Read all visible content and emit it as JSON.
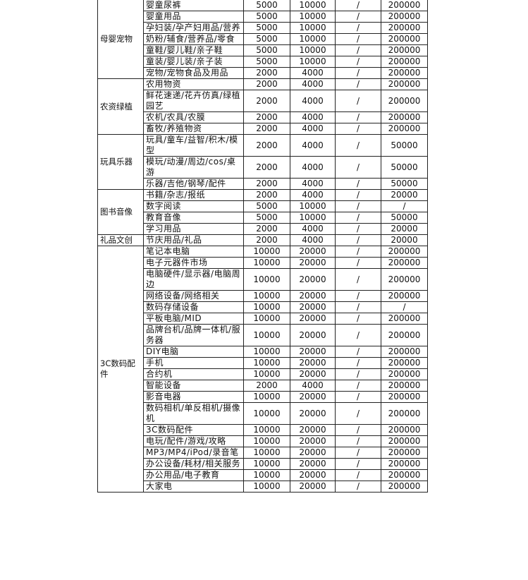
{
  "groups": [
    {
      "name": "母婴宠物",
      "rows": [
        [
          "婴童尿裤",
          "5000",
          "10000",
          "/",
          "200000"
        ],
        [
          "婴童用品",
          "5000",
          "10000",
          "/",
          "200000"
        ],
        [
          "孕妇装/孕产妇用品/营养",
          "5000",
          "10000",
          "/",
          "200000"
        ],
        [
          "奶粉/辅食/营养品/零食",
          "5000",
          "10000",
          "/",
          "200000"
        ],
        [
          "童鞋/婴儿鞋/亲子鞋",
          "5000",
          "10000",
          "/",
          "200000"
        ],
        [
          "童装/婴儿装/亲子装",
          "5000",
          "10000",
          "/",
          "200000"
        ],
        [
          "宠物/宠物食品及用品",
          "2000",
          "4000",
          "/",
          "200000"
        ]
      ]
    },
    {
      "name": "农资绿植",
      "rows": [
        [
          "农用物资",
          "2000",
          "4000",
          "/",
          "200000"
        ],
        [
          "鲜花速递/花卉仿真/绿植园艺",
          "2000",
          "4000",
          "/",
          "200000"
        ],
        [
          "农机/农具/农膜",
          "2000",
          "4000",
          "/",
          "200000"
        ],
        [
          "畜牧/养殖物资",
          "2000",
          "4000",
          "/",
          "200000"
        ]
      ]
    },
    {
      "name": "玩具乐器",
      "rows": [
        [
          "玩具/童车/益智/积木/模型",
          "2000",
          "4000",
          "/",
          "50000"
        ],
        [
          "模玩/动漫/周边/cos/桌游",
          "2000",
          "4000",
          "/",
          "50000"
        ],
        [
          "乐器/吉他/钢琴/配件",
          "2000",
          "4000",
          "/",
          "50000"
        ]
      ]
    },
    {
      "name": "图书音像",
      "rows": [
        [
          "书籍/杂志/报纸",
          "2000",
          "4000",
          "/",
          "20000"
        ],
        [
          "数字阅读",
          "5000",
          "10000",
          "/",
          "/"
        ],
        [
          "教育音像",
          "5000",
          "10000",
          "/",
          "50000"
        ],
        [
          "学习用品",
          "2000",
          "4000",
          "/",
          "20000"
        ]
      ]
    },
    {
      "name": "礼品文创",
      "rows": [
        [
          "节庆用品/礼品",
          "2000",
          "4000",
          "/",
          "20000"
        ]
      ]
    },
    {
      "name": "3C数码配件",
      "rows": [
        [
          "笔记本电脑",
          "10000",
          "20000",
          "/",
          "200000"
        ],
        [
          "电子元器件市场",
          "10000",
          "20000",
          "/",
          "200000"
        ],
        [
          "电脑硬件/显示器/电脑周边",
          "10000",
          "20000",
          "/",
          "200000"
        ],
        [
          "网络设备/网络相关",
          "10000",
          "20000",
          "/",
          "200000"
        ],
        [
          "数码存储设备",
          "10000",
          "20000",
          "/",
          "/"
        ],
        [
          "平板电脑/MID",
          "10000",
          "20000",
          "/",
          "200000"
        ],
        [
          "品牌台机/品牌一体机/服务器",
          "10000",
          "20000",
          "/",
          "200000"
        ],
        [
          "DIY电脑",
          "10000",
          "20000",
          "/",
          "200000"
        ],
        [
          "手机",
          "10000",
          "20000",
          "/",
          "200000"
        ],
        [
          "合约机",
          "10000",
          "20000",
          "/",
          "200000"
        ],
        [
          "智能设备",
          "2000",
          "4000",
          "/",
          "200000"
        ],
        [
          "影音电器",
          "10000",
          "20000",
          "/",
          "200000"
        ],
        [
          "数码相机/单反相机/摄像机",
          "10000",
          "20000",
          "/",
          "200000"
        ],
        [
          "3C数码配件",
          "10000",
          "20000",
          "/",
          "200000"
        ],
        [
          "电玩/配件/游戏/攻略",
          "10000",
          "20000",
          "/",
          "200000"
        ],
        [
          "MP3/MP4/iPod/录音笔",
          "10000",
          "20000",
          "/",
          "200000"
        ],
        [
          "办公设备/耗材/相关服务",
          "10000",
          "20000",
          "/",
          "200000"
        ],
        [
          "办公用品/电子教育",
          "10000",
          "20000",
          "/",
          "200000"
        ],
        [
          "大家电",
          "10000",
          "20000",
          "/",
          "200000"
        ]
      ]
    }
  ]
}
